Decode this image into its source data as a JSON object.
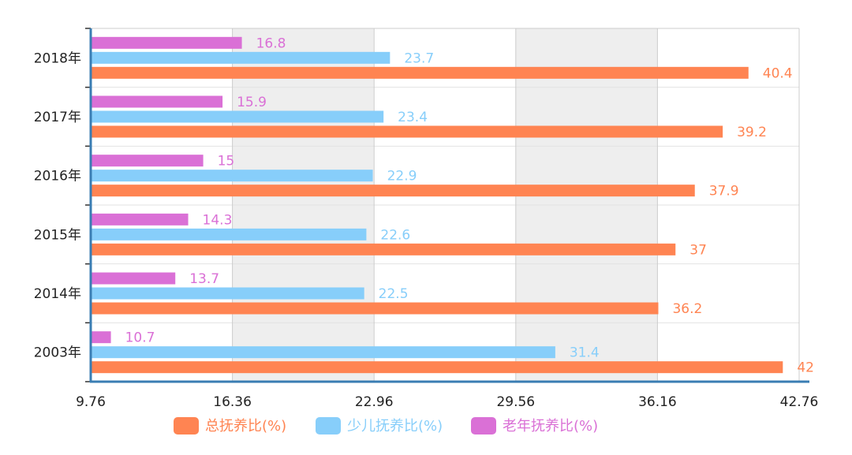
{
  "chart_data": {
    "type": "bar",
    "orientation": "horizontal",
    "title": "",
    "xlabel": "",
    "ylabel": "",
    "categories": [
      "2018年",
      "2017年",
      "2016年",
      "2015年",
      "2014年",
      "2003年"
    ],
    "series": [
      {
        "name": "总抚养比(%)",
        "color": "#FF8452",
        "values": [
          40.4,
          39.2,
          37.9,
          37,
          36.2,
          42
        ]
      },
      {
        "name": "少儿抚养比(%)",
        "color": "#87CEFA",
        "values": [
          23.7,
          23.4,
          22.9,
          22.6,
          22.5,
          31.4
        ]
      },
      {
        "name": "老年抚养比(%)",
        "color": "#DA70D6",
        "values": [
          16.8,
          15.9,
          15,
          14.3,
          13.7,
          10.7
        ]
      }
    ],
    "xlim": [
      9.76,
      42.76
    ],
    "xticks": [
      "9.76",
      "16.36",
      "22.96",
      "29.56",
      "36.16",
      "42.76"
    ],
    "grid": true,
    "data_labels": true,
    "legend_position": "bottom-center",
    "axis_color": "#3A7DB3",
    "grid_color": "#CCCCCC",
    "band_colors": [
      "#FFFFFF",
      "#EEEEEE"
    ],
    "row_band_color": "#FAF8FB"
  }
}
